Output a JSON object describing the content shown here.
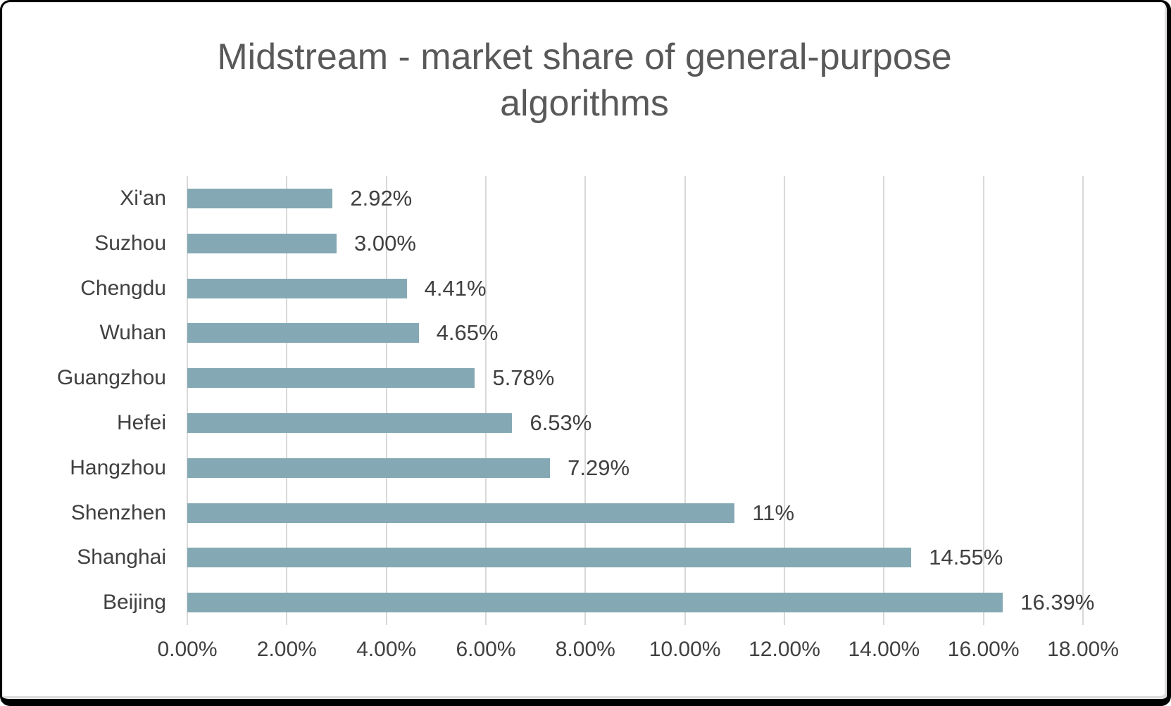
{
  "chart_data": {
    "type": "bar",
    "orientation": "horizontal",
    "title": "Midstream - market share of general-purpose algorithms",
    "categories": [
      "Xi'an",
      "Suzhou",
      "Chengdu",
      "Wuhan",
      "Guangzhou",
      "Hefei",
      "Hangzhou",
      "Shenzhen",
      "Shanghai",
      "Beijing"
    ],
    "values": [
      2.92,
      3.0,
      4.41,
      4.65,
      5.78,
      6.53,
      7.29,
      11,
      14.55,
      16.39
    ],
    "data_labels": [
      "2.92%",
      "3.00%",
      "4.41%",
      "4.65%",
      "5.78%",
      "6.53%",
      "7.29%",
      "11%",
      "14.55%",
      "16.39%"
    ],
    "category_order": "top-to-bottom",
    "x_ticks": [
      "0.00%",
      "2.00%",
      "4.00%",
      "6.00%",
      "8.00%",
      "10.00%",
      "12.00%",
      "14.00%",
      "16.00%",
      "18.00%"
    ],
    "xlim": [
      0,
      18
    ],
    "grid": "vertical-only",
    "legend": "none",
    "colors": {
      "bar": "#84a9b4",
      "gridline": "#d9d9d9",
      "title_text": "#595959",
      "label_text": "#404040",
      "background": "#ffffff",
      "frame_border": "#000000"
    }
  }
}
